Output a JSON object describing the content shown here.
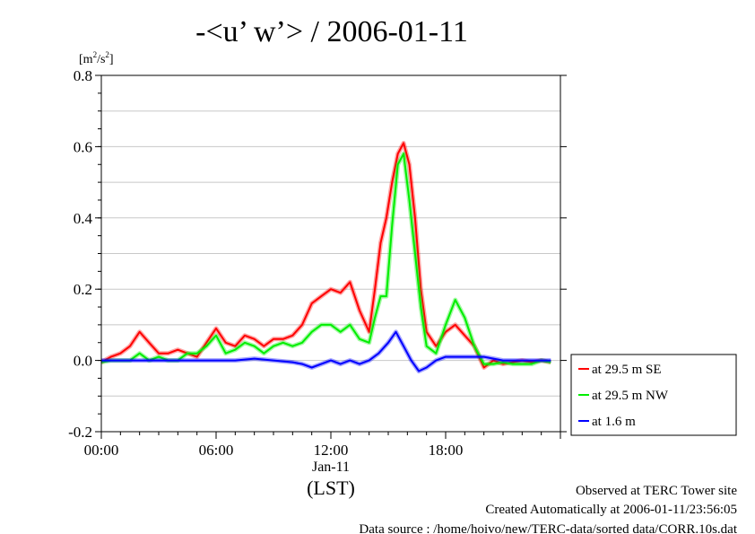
{
  "chart_data": {
    "type": "line",
    "title": "-<u’ w’> / 2006-01-11",
    "ylabel": "[m2/s2]",
    "ylabel_base": "[m",
    "ylabel_sup1": "2",
    "ylabel_mid": "/s",
    "ylabel_sup2": "2",
    "ylabel_end": "]",
    "ylim": [
      -0.2,
      0.8
    ],
    "y_ticks": [
      -0.2,
      0.0,
      0.2,
      0.4,
      0.6,
      0.8
    ],
    "y_tick_labels": [
      "-0.2",
      "0.0",
      "0.2",
      "0.4",
      "0.6",
      "0.8"
    ],
    "xlim": [
      0,
      24
    ],
    "x_ticks": [
      0,
      6,
      12,
      18
    ],
    "x_tick_labels": [
      "00:00",
      "06:00",
      "12:00",
      "18:00"
    ],
    "x_date_label": "Jan-11",
    "xlabel": "(LST)",
    "grid": true,
    "legend_position": "right",
    "series": [
      {
        "name": "at 29.5 m SE",
        "color": "#ff0000",
        "x": [
          0,
          0.5,
          1.0,
          1.5,
          2.0,
          2.5,
          3.0,
          3.5,
          4.0,
          4.5,
          5.0,
          5.5,
          6.0,
          6.5,
          7.0,
          7.5,
          8.0,
          8.5,
          9.0,
          9.5,
          10.0,
          10.5,
          11.0,
          11.5,
          12.0,
          12.5,
          13.0,
          13.5,
          14.0,
          14.3,
          14.6,
          14.9,
          15.2,
          15.5,
          15.8,
          16.1,
          16.4,
          16.7,
          17.0,
          17.5,
          18.0,
          18.5,
          19.0,
          19.5,
          20.0,
          20.5,
          21.0,
          21.5,
          22.0,
          22.5,
          23.0,
          23.5
        ],
        "y": [
          -0.005,
          0.01,
          0.02,
          0.04,
          0.08,
          0.05,
          0.02,
          0.02,
          0.03,
          0.02,
          0.01,
          0.05,
          0.09,
          0.05,
          0.04,
          0.07,
          0.06,
          0.04,
          0.06,
          0.06,
          0.07,
          0.1,
          0.16,
          0.18,
          0.2,
          0.19,
          0.22,
          0.14,
          0.08,
          0.2,
          0.33,
          0.4,
          0.5,
          0.58,
          0.61,
          0.55,
          0.4,
          0.2,
          0.08,
          0.04,
          0.08,
          0.1,
          0.07,
          0.04,
          -0.02,
          0.0,
          -0.01,
          -0.005,
          0.0,
          -0.005,
          0.0,
          -0.005
        ]
      },
      {
        "name": "at 29.5 m NW",
        "color": "#00ee00",
        "x": [
          0,
          0.5,
          1.0,
          1.5,
          2.0,
          2.5,
          3.0,
          3.5,
          4.0,
          4.5,
          5.0,
          5.5,
          6.0,
          6.5,
          7.0,
          7.5,
          8.0,
          8.5,
          9.0,
          9.5,
          10.0,
          10.5,
          11.0,
          11.5,
          12.0,
          12.5,
          13.0,
          13.5,
          14.0,
          14.3,
          14.6,
          14.9,
          15.2,
          15.5,
          15.8,
          16.1,
          16.4,
          16.7,
          17.0,
          17.5,
          18.0,
          18.5,
          19.0,
          19.5,
          20.0,
          20.5,
          21.0,
          21.5,
          22.0,
          22.5,
          23.0,
          23.5
        ],
        "y": [
          -0.005,
          0.0,
          0.0,
          0.0,
          0.02,
          0.0,
          0.01,
          0.0,
          0.0,
          0.02,
          0.02,
          0.04,
          0.07,
          0.02,
          0.03,
          0.05,
          0.04,
          0.02,
          0.04,
          0.05,
          0.04,
          0.05,
          0.08,
          0.1,
          0.1,
          0.08,
          0.1,
          0.06,
          0.05,
          0.12,
          0.18,
          0.18,
          0.38,
          0.55,
          0.58,
          0.45,
          0.3,
          0.15,
          0.04,
          0.02,
          0.1,
          0.17,
          0.12,
          0.04,
          -0.01,
          -0.01,
          -0.005,
          -0.01,
          -0.01,
          -0.01,
          0.0,
          -0.005
        ]
      },
      {
        "name": "at 1.6 m",
        "color": "#0000ff",
        "x": [
          0,
          1,
          2,
          3,
          4,
          5,
          6,
          7,
          8,
          9,
          10,
          10.5,
          11,
          11.5,
          12,
          12.5,
          13,
          13.5,
          14,
          14.5,
          15.0,
          15.4,
          15.8,
          16.2,
          16.6,
          17.0,
          17.5,
          18,
          19,
          20,
          21,
          22,
          23,
          23.5
        ],
        "y": [
          0,
          0,
          0,
          0,
          0,
          0,
          0,
          0,
          0.005,
          0,
          -0.005,
          -0.01,
          -0.02,
          -0.01,
          0.0,
          -0.01,
          0.0,
          -0.01,
          0.0,
          0.02,
          0.05,
          0.08,
          0.04,
          0.0,
          -0.03,
          -0.02,
          0.0,
          0.01,
          0.01,
          0.01,
          0.0,
          0.0,
          0.0,
          0.0
        ]
      }
    ]
  },
  "footer": {
    "line1": "Observed at TERC Tower site",
    "line2": "Created Automatically at 2006-01-11/23:56:05",
    "line3": "Data source : /home/hoivo/new/TERC-data/sorted  data/CORR.10s.dat"
  }
}
